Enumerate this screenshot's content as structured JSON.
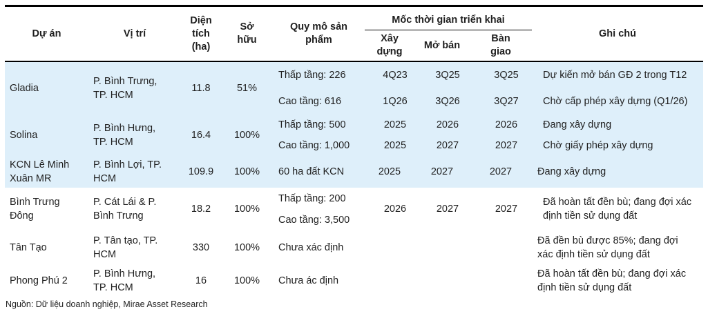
{
  "header": {
    "project": "Dự án",
    "location": "Vị trí",
    "area": "Diện tích (ha)",
    "ownership": "Sở hữu",
    "scale": "Quy mô sản phẩm",
    "timeline_group": "Mốc thời gian triển khai",
    "build": "Xây dựng",
    "open_sale": "Mở bán",
    "handover": "Bàn giao",
    "notes": "Ghi chú"
  },
  "rows": [
    {
      "project": "Gladia",
      "location": "P. Bình Trưng, TP. HCM",
      "area": "11.8",
      "ownership": "51%",
      "lines": [
        {
          "scale": "Thấp tầng: 226",
          "build": "4Q23",
          "open": "3Q25",
          "handover": "3Q25",
          "note": "Dự kiến mở bán GĐ 2 trong T12"
        },
        {
          "scale": "Cao tầng: 616",
          "build": "1Q26",
          "open": "3Q26",
          "handover": "3Q27",
          "note": "Chờ cấp phép xây dựng (Q1/26)"
        }
      ]
    },
    {
      "project": "Solina",
      "location": "P. Bình Hưng, TP. HCM",
      "area": "16.4",
      "ownership": "100%",
      "lines": [
        {
          "scale": "Thấp tầng: 500",
          "build": "2025",
          "open": "2026",
          "handover": "2026",
          "note": "Đang xây dựng"
        },
        {
          "scale": "Cao tầng: 1,000",
          "build": "2025",
          "open": "2027",
          "handover": "2027",
          "note": "Chờ giấy phép xây dựng"
        }
      ]
    },
    {
      "project": "KCN Lê Minh Xuân MR",
      "location": "P. Bình Lợi, TP. HCM",
      "area": "109.9",
      "ownership": "100%",
      "scale": "60 ha đất KCN",
      "build": "2025",
      "open": "2027",
      "handover": "2027",
      "note": "Đang xây dựng"
    },
    {
      "project": "Bình Trưng Đông",
      "location": "P. Cát Lái & P. Bình Trưng",
      "area": "18.2",
      "ownership": "100%",
      "scale_lines": [
        "Thấp tầng: 200",
        "Cao tầng: 3,500"
      ],
      "build": "2026",
      "open": "2027",
      "handover": "2027",
      "note": "Đã hoàn tất đền bù; đang đợi xác định tiền sử dụng đất"
    },
    {
      "project": "Tân Tạo",
      "location": "P. Tân tạo, TP. HCM",
      "area": "330",
      "ownership": "100%",
      "scale": "Chưa xác định",
      "note": "Đã đền bù được 85%; đang đợi xác định tiền sử dụng đất"
    },
    {
      "project": "Phong Phú 2",
      "location": "P. Bình Hưng, TP. HCM",
      "area": "16",
      "ownership": "100%",
      "scale": "Chưa ác định",
      "note": "Đã hoàn tất đền bù; đang đợi xác định tiền sử dụng đất"
    }
  ],
  "footer": {
    "source": "Nguồn: Dữ liệu doanh nghiệp, Mirae Asset Research"
  },
  "colors": {
    "band_blue": "#deeffa",
    "border": "#000000",
    "text": "#1f1f1f"
  }
}
